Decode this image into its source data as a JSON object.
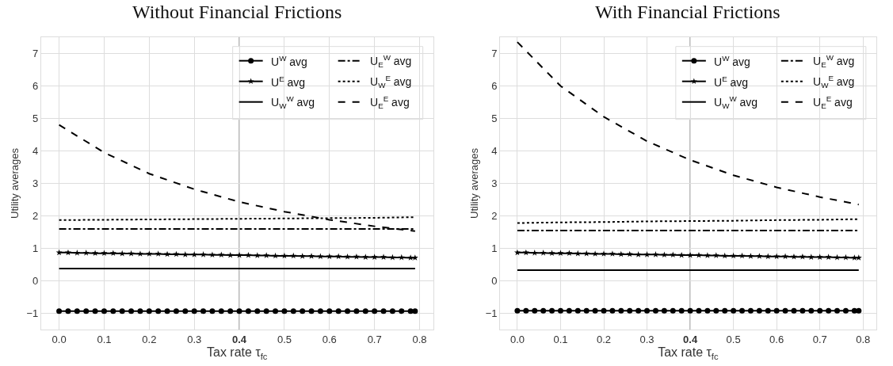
{
  "chart_data": [
    {
      "type": "line",
      "title": "Without Financial Frictions",
      "xlabel": "Tax rate τ$_{fc}$",
      "ylabel": "Utility averages",
      "x": [
        0,
        0.1,
        0.2,
        0.3,
        0.4,
        0.5,
        0.6,
        0.7,
        0.79
      ],
      "series": [
        {
          "name": "U$^{W}$ avg",
          "color": "#000000",
          "marker": "circle",
          "line_style": "solid",
          "x": [
            0,
            0.02,
            0.04,
            0.06,
            0.08,
            0.1,
            0.12,
            0.14,
            0.16,
            0.18,
            0.2,
            0.22,
            0.24,
            0.26,
            0.28,
            0.3,
            0.32,
            0.34,
            0.36,
            0.38,
            0.4,
            0.42,
            0.44,
            0.46,
            0.48,
            0.5,
            0.52,
            0.54,
            0.56,
            0.58,
            0.6,
            0.62,
            0.64,
            0.66,
            0.68,
            0.7,
            0.72,
            0.74,
            0.76,
            0.78,
            0.79
          ],
          "values": [
            -0.93,
            -0.93,
            -0.93,
            -0.93,
            -0.93,
            -0.93,
            -0.93,
            -0.93,
            -0.93,
            -0.93,
            -0.93,
            -0.93,
            -0.93,
            -0.93,
            -0.93,
            -0.93,
            -0.93,
            -0.93,
            -0.93,
            -0.93,
            -0.93,
            -0.93,
            -0.93,
            -0.93,
            -0.93,
            -0.93,
            -0.93,
            -0.93,
            -0.93,
            -0.93,
            -0.93,
            -0.93,
            -0.93,
            -0.93,
            -0.93,
            -0.93,
            -0.93,
            -0.93,
            -0.93,
            -0.93,
            -0.93
          ]
        },
        {
          "name": "U$^{E}$ avg",
          "color": "#000000",
          "marker": "star",
          "line_style": "solid",
          "x": [
            0,
            0.02,
            0.04,
            0.06,
            0.08,
            0.1,
            0.12,
            0.14,
            0.16,
            0.18,
            0.2,
            0.22,
            0.24,
            0.26,
            0.28,
            0.3,
            0.32,
            0.34,
            0.36,
            0.38,
            0.4,
            0.42,
            0.44,
            0.46,
            0.48,
            0.5,
            0.52,
            0.54,
            0.56,
            0.58,
            0.6,
            0.62,
            0.64,
            0.66,
            0.68,
            0.7,
            0.72,
            0.74,
            0.76,
            0.78,
            0.79
          ],
          "values": [
            0.87,
            0.87,
            0.86,
            0.86,
            0.85,
            0.85,
            0.85,
            0.84,
            0.84,
            0.83,
            0.83,
            0.83,
            0.82,
            0.82,
            0.81,
            0.81,
            0.81,
            0.8,
            0.8,
            0.79,
            0.79,
            0.79,
            0.78,
            0.78,
            0.77,
            0.77,
            0.77,
            0.76,
            0.76,
            0.75,
            0.75,
            0.75,
            0.74,
            0.74,
            0.73,
            0.73,
            0.73,
            0.72,
            0.72,
            0.71,
            0.71
          ]
        },
        {
          "name": "U$_{W}$$^{W}$ avg",
          "color": "#000000",
          "marker": "none",
          "line_style": "solid",
          "values": [
            0.38,
            0.38,
            0.38,
            0.38,
            0.38,
            0.38,
            0.38,
            0.38,
            0.38
          ]
        },
        {
          "name": "U$_{E}$$^{W}$ avg",
          "color": "#000000",
          "marker": "none",
          "line_style": "dashdot",
          "values": [
            1.6,
            1.6,
            1.6,
            1.6,
            1.6,
            1.6,
            1.6,
            1.6,
            1.6
          ]
        },
        {
          "name": "U$_{W}$$^{E}$ avg",
          "color": "#000000",
          "marker": "none",
          "line_style": "dotted",
          "values": [
            1.87,
            1.88,
            1.89,
            1.9,
            1.91,
            1.92,
            1.93,
            1.94,
            1.96
          ]
        },
        {
          "name": "U$_{E}$$^{E}$ avg",
          "color": "#000000",
          "marker": "none",
          "line_style": "dashed",
          "values": [
            4.8,
            3.95,
            3.3,
            2.82,
            2.43,
            2.13,
            1.88,
            1.68,
            1.53
          ]
        }
      ],
      "xlim": [
        -0.04,
        0.83
      ],
      "xticks": [
        {
          "value": 0,
          "label": "0.0"
        },
        0.1,
        0.2,
        0.3,
        0.4,
        0.5,
        0.6,
        0.7,
        0.8
      ],
      "ylim": [
        -1.5,
        7.5
      ],
      "yticks": [
        {
          "value": -1,
          "label": "−1"
        },
        0,
        1,
        2,
        3,
        4,
        5,
        6,
        7
      ],
      "ref_lines": [
        {
          "axis": "x",
          "value": 0.4,
          "color": "#999999"
        }
      ],
      "grid": true,
      "legend": "top right"
    },
    {
      "type": "line",
      "title": "With Financial Frictions",
      "xlabel": "Tax rate τ$_{fc}$",
      "ylabel": "Utility averages",
      "x": [
        0,
        0.1,
        0.2,
        0.3,
        0.4,
        0.5,
        0.6,
        0.7,
        0.79
      ],
      "series": [
        {
          "name": "U$^{W}$ avg",
          "color": "#000000",
          "marker": "circle",
          "line_style": "solid",
          "x": [
            0,
            0.02,
            0.04,
            0.06,
            0.08,
            0.1,
            0.12,
            0.14,
            0.16,
            0.18,
            0.2,
            0.22,
            0.24,
            0.26,
            0.28,
            0.3,
            0.32,
            0.34,
            0.36,
            0.38,
            0.4,
            0.42,
            0.44,
            0.46,
            0.48,
            0.5,
            0.52,
            0.54,
            0.56,
            0.58,
            0.6,
            0.62,
            0.64,
            0.66,
            0.68,
            0.7,
            0.72,
            0.74,
            0.76,
            0.78,
            0.79
          ],
          "values": [
            -0.92,
            -0.92,
            -0.92,
            -0.92,
            -0.92,
            -0.92,
            -0.92,
            -0.92,
            -0.92,
            -0.92,
            -0.92,
            -0.92,
            -0.92,
            -0.92,
            -0.92,
            -0.92,
            -0.92,
            -0.92,
            -0.92,
            -0.92,
            -0.92,
            -0.92,
            -0.92,
            -0.92,
            -0.92,
            -0.92,
            -0.92,
            -0.92,
            -0.92,
            -0.92,
            -0.92,
            -0.92,
            -0.92,
            -0.92,
            -0.92,
            -0.92,
            -0.92,
            -0.92,
            -0.92,
            -0.92,
            -0.92
          ]
        },
        {
          "name": "U$^{E}$ avg",
          "color": "#000000",
          "marker": "star",
          "line_style": "solid",
          "x": [
            0,
            0.02,
            0.04,
            0.06,
            0.08,
            0.1,
            0.12,
            0.14,
            0.16,
            0.18,
            0.2,
            0.22,
            0.24,
            0.26,
            0.28,
            0.3,
            0.32,
            0.34,
            0.36,
            0.38,
            0.4,
            0.42,
            0.44,
            0.46,
            0.48,
            0.5,
            0.52,
            0.54,
            0.56,
            0.58,
            0.6,
            0.62,
            0.64,
            0.66,
            0.68,
            0.7,
            0.72,
            0.74,
            0.76,
            0.78,
            0.79
          ],
          "values": [
            0.87,
            0.87,
            0.86,
            0.86,
            0.85,
            0.85,
            0.85,
            0.84,
            0.84,
            0.83,
            0.83,
            0.83,
            0.82,
            0.82,
            0.81,
            0.81,
            0.81,
            0.8,
            0.8,
            0.79,
            0.79,
            0.79,
            0.78,
            0.78,
            0.77,
            0.77,
            0.77,
            0.76,
            0.76,
            0.75,
            0.75,
            0.75,
            0.74,
            0.74,
            0.73,
            0.73,
            0.73,
            0.72,
            0.72,
            0.71,
            0.71
          ]
        },
        {
          "name": "U$_{W}$$^{W}$ avg",
          "color": "#000000",
          "marker": "none",
          "line_style": "solid",
          "values": [
            0.33,
            0.33,
            0.33,
            0.33,
            0.33,
            0.33,
            0.33,
            0.33,
            0.33
          ]
        },
        {
          "name": "U$_{E}$$^{W}$ avg",
          "color": "#000000",
          "marker": "none",
          "line_style": "dashdot",
          "values": [
            1.55,
            1.55,
            1.55,
            1.55,
            1.55,
            1.55,
            1.55,
            1.55,
            1.55
          ]
        },
        {
          "name": "U$_{W}$$^{E}$ avg",
          "color": "#000000",
          "marker": "none",
          "line_style": "dotted",
          "values": [
            1.78,
            1.8,
            1.81,
            1.83,
            1.84,
            1.85,
            1.87,
            1.88,
            1.9
          ]
        },
        {
          "name": "U$_{E}$$^{E}$ avg",
          "color": "#000000",
          "marker": "none",
          "line_style": "dashed",
          "values": [
            7.35,
            6.0,
            5.05,
            4.3,
            3.72,
            3.25,
            2.88,
            2.58,
            2.35
          ]
        }
      ],
      "xlim": [
        -0.04,
        0.83
      ],
      "xticks": [
        {
          "value": 0,
          "label": "0.0"
        },
        0.1,
        0.2,
        0.3,
        0.4,
        0.5,
        0.6,
        0.7,
        0.8
      ],
      "ylim": [
        -1.5,
        7.5
      ],
      "yticks": [
        {
          "value": -1,
          "label": "−1"
        },
        0,
        1,
        2,
        3,
        4,
        5,
        6,
        7
      ],
      "ref_lines": [
        {
          "axis": "x",
          "value": 0.4,
          "color": "#999999"
        }
      ],
      "grid": true,
      "legend": "top right"
    }
  ]
}
